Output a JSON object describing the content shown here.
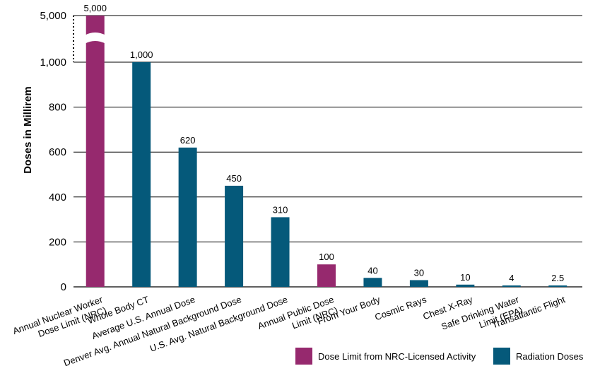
{
  "chart_data": {
    "type": "bar",
    "ylabel": "Doses in Millirem",
    "xlabel": "",
    "ylim": [
      0,
      1000
    ],
    "axis_break": {
      "from": 1000,
      "to_label": "5,000"
    },
    "yticks": [
      {
        "value": 0,
        "label": "0"
      },
      {
        "value": 200,
        "label": "200"
      },
      {
        "value": 400,
        "label": "400"
      },
      {
        "value": 600,
        "label": "600"
      },
      {
        "value": 800,
        "label": "800"
      },
      {
        "value": 1000,
        "label": "1,000"
      },
      {
        "value": 5000,
        "label": "5,000"
      }
    ],
    "grid": true,
    "categories": [
      [
        "Annual Nuclear Worker",
        "Dose Limit (NRC)"
      ],
      [
        "Whole Body CT"
      ],
      [
        "Average U.S. Annual Dose"
      ],
      [
        "Denver Avg. Annual Natural Background Dose"
      ],
      [
        "U.S. Avg. Natural Background Dose"
      ],
      [
        "Annual Public Dose",
        "Limit (NRC)"
      ],
      [
        "From Your Body"
      ],
      [
        "Cosmic Rays"
      ],
      [
        "Chest X-Ray"
      ],
      [
        "Safe Drinking Water",
        "Limit (EPA)"
      ],
      [
        "Transatlantic Flight"
      ]
    ],
    "values": [
      5000,
      1000,
      620,
      450,
      310,
      100,
      40,
      30,
      10,
      4,
      2.5
    ],
    "value_labels": [
      "5,000",
      "1,000",
      "620",
      "450",
      "310",
      "100",
      "40",
      "30",
      "10",
      "4",
      "2.5"
    ],
    "series_index": [
      0,
      1,
      1,
      1,
      1,
      0,
      1,
      1,
      1,
      1,
      1
    ],
    "series": [
      {
        "name": "Dose Limit from NRC-Licensed Activity",
        "color": "#96296e"
      },
      {
        "name": "Radiation Doses",
        "color": "#05597a"
      }
    ],
    "legend": "bottom-right"
  }
}
